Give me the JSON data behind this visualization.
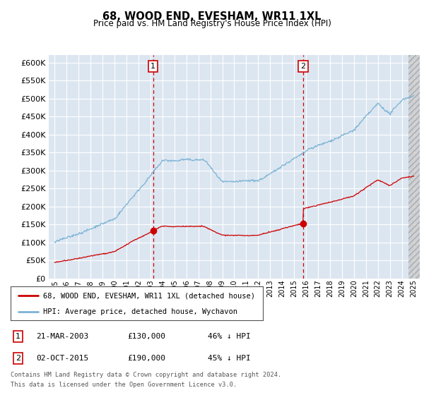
{
  "title": "68, WOOD END, EVESHAM, WR11 1XL",
  "subtitle": "Price paid vs. HM Land Registry's House Price Index (HPI)",
  "background_color": "#dce6f1",
  "legend_line1": "68, WOOD END, EVESHAM, WR11 1XL (detached house)",
  "legend_line2": "HPI: Average price, detached house, Wychavon",
  "red_color": "#cc0000",
  "blue_color": "#7ab3d4",
  "annotation1": {
    "label": "1",
    "date": "21-MAR-2003",
    "price": "£130,000",
    "pct": "46% ↓ HPI",
    "x_year": 2003.21
  },
  "annotation2": {
    "label": "2",
    "date": "02-OCT-2015",
    "price": "£190,000",
    "pct": "45% ↓ HPI",
    "x_year": 2015.75
  },
  "footer1": "Contains HM Land Registry data © Crown copyright and database right 2024.",
  "footer2": "This data is licensed under the Open Government Licence v3.0.",
  "ylim": [
    0,
    620000
  ],
  "yticks": [
    0,
    50000,
    100000,
    150000,
    200000,
    250000,
    300000,
    350000,
    400000,
    450000,
    500000,
    550000,
    600000
  ],
  "xlim": [
    1994.5,
    2025.5
  ],
  "xticks": [
    1995,
    1996,
    1997,
    1998,
    1999,
    2000,
    2001,
    2002,
    2003,
    2004,
    2005,
    2006,
    2007,
    2008,
    2009,
    2010,
    2011,
    2012,
    2013,
    2014,
    2015,
    2016,
    2017,
    2018,
    2019,
    2020,
    2021,
    2022,
    2023,
    2024,
    2025
  ]
}
